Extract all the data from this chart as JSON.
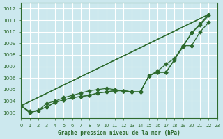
{
  "title": "Graphe pression niveau de la mer (hPa)",
  "bg_color": "#cce8ee",
  "grid_color": "#ffffff",
  "line_color": "#2d6a2d",
  "xlim": [
    0,
    23
  ],
  "ylim": [
    1002.5,
    1012.5
  ],
  "yticks": [
    1003,
    1004,
    1005,
    1006,
    1007,
    1008,
    1009,
    1010,
    1011,
    1012
  ],
  "xticks": [
    0,
    1,
    2,
    3,
    4,
    5,
    6,
    7,
    8,
    9,
    10,
    11,
    12,
    13,
    14,
    15,
    16,
    17,
    18,
    19,
    20,
    21,
    22,
    23
  ],
  "series": [
    {
      "x": [
        0,
        22
      ],
      "y": [
        1003.6,
        1011.5
      ],
      "marker": false,
      "lw": 1.0
    },
    {
      "x": [
        0,
        22
      ],
      "y": [
        1003.6,
        1011.5
      ],
      "marker": false,
      "lw": 1.0
    },
    {
      "x": [
        0,
        1,
        2,
        3,
        4,
        5,
        6,
        7,
        8,
        9,
        10,
        11,
        12,
        13,
        14,
        15,
        16,
        17,
        18,
        19,
        20,
        21,
        22
      ],
      "y": [
        1003.6,
        1003.1,
        1003.2,
        1003.8,
        1004.0,
        1004.3,
        1004.5,
        1004.7,
        1004.9,
        1005.0,
        1005.1,
        1005.0,
        1004.9,
        1004.8,
        1004.8,
        1006.2,
        1006.6,
        1007.2,
        1007.7,
        1008.8,
        1009.9,
        1010.7,
        1011.5
      ],
      "marker": true,
      "lw": 0.9
    },
    {
      "x": [
        0,
        1,
        2,
        3,
        4,
        5,
        6,
        7,
        8,
        9,
        10,
        11,
        12,
        13,
        14,
        15,
        16,
        17,
        18,
        19,
        20,
        21,
        22
      ],
      "y": [
        1003.6,
        1003.0,
        1003.2,
        1003.5,
        1003.9,
        1004.1,
        1004.3,
        1004.4,
        1004.5,
        1004.7,
        1004.8,
        1004.9,
        1004.9,
        1004.8,
        1004.8,
        1006.2,
        1006.5,
        1006.5,
        1007.6,
        1008.8,
        1008.8,
        1010.0,
        1010.8
      ],
      "marker": true,
      "lw": 0.9
    },
    {
      "x": [
        0,
        1,
        2,
        3,
        4,
        5,
        6,
        7,
        8,
        9,
        10,
        11,
        12,
        13,
        14,
        15,
        16,
        17,
        18,
        19,
        20,
        21,
        22
      ],
      "y": [
        1003.6,
        1003.0,
        1003.2,
        1003.5,
        1003.9,
        1004.1,
        1004.3,
        1004.4,
        1004.5,
        1004.7,
        1004.8,
        1004.9,
        1004.9,
        1004.8,
        1004.8,
        1006.2,
        1006.5,
        1006.5,
        1007.6,
        1008.7,
        1009.9,
        1010.6,
        1011.4
      ],
      "marker": true,
      "lw": 0.9
    }
  ],
  "marker_style": "D",
  "marker_size": 2.5
}
